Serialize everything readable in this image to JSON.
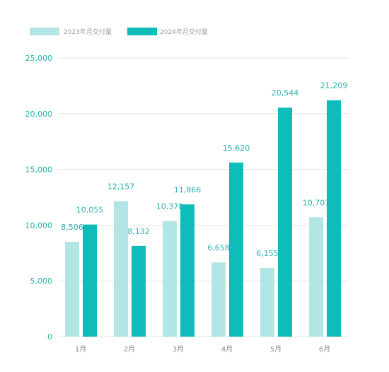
{
  "chart_data": {
    "type": "bar",
    "categories": [
      "1月",
      "2月",
      "3月",
      "4月",
      "5月",
      "6月"
    ],
    "series": [
      {
        "name": "2023年月交付量",
        "color": "#b2e6e6",
        "values": [
          8506,
          12157,
          10378,
          6658,
          6155,
          10707
        ]
      },
      {
        "name": "2024年月交付量",
        "color": "#0ebcb9",
        "values": [
          10055,
          8132,
          11866,
          15620,
          20544,
          21209
        ]
      }
    ],
    "data_labels": [
      [
        "8,506",
        "12,157",
        "10,378",
        "6,658",
        "6,155",
        "10,707"
      ],
      [
        "10,055",
        "8,132",
        "11,866",
        "15,620",
        "20,544",
        "21,209"
      ]
    ],
    "yticks": [
      0,
      5000,
      10000,
      15000,
      20000,
      25000
    ],
    "ytick_labels": [
      "0",
      "5,000",
      "10,000",
      "15,000",
      "20,000",
      "25,000"
    ],
    "ylim": [
      0,
      25000
    ],
    "grid": true,
    "legend": "top-left",
    "title": "",
    "xlabel": "",
    "ylabel": ""
  }
}
